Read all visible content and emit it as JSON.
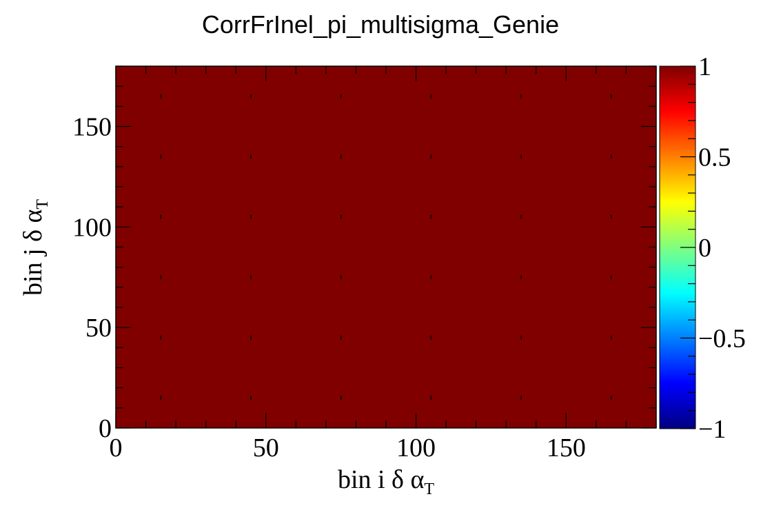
{
  "chart_data": {
    "type": "heatmap",
    "title": "CorrFrInel_pi_multisigma_Genie",
    "xlabel": {
      "main": "bin i δ α",
      "sub": "T"
    },
    "ylabel": {
      "main": "bin j δ α",
      "sub": "T"
    },
    "xlim": [
      0,
      180
    ],
    "ylim": [
      0,
      180
    ],
    "x_ticks": [
      0,
      50,
      100,
      150
    ],
    "y_ticks": [
      0,
      50,
      100,
      150
    ],
    "x_tick_labels": [
      "0",
      "50",
      "100",
      "150"
    ],
    "y_tick_labels": [
      "0",
      "50",
      "100",
      "150"
    ],
    "marker_x": [
      15,
      45,
      75,
      105,
      135,
      165
    ],
    "marker_y": [
      15,
      45,
      75,
      105,
      135,
      165
    ],
    "uniform_value": 1,
    "colorbar": {
      "min": -1,
      "max": 1,
      "ticks": [
        -1,
        -0.5,
        0,
        0.5,
        1
      ],
      "tick_labels": [
        "−1",
        "−0.5",
        "0",
        "0.5",
        "1"
      ]
    },
    "colors": {
      "fill": "#800000",
      "axis": "#000000",
      "background": "#ffffff"
    }
  }
}
